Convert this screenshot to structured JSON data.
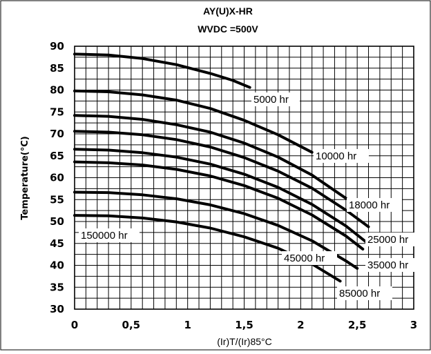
{
  "chart_data": {
    "type": "line",
    "title": "AY(U)X-HR",
    "subtitle": "WVDC =500V",
    "xlabel": "(Ir)T/(Ir)85°C",
    "ylabel": "Temperature(°C)",
    "xlim": [
      0,
      3
    ],
    "ylim": [
      30,
      90
    ],
    "x_minor_step": 0.1,
    "y_minor_step": 2.5,
    "x_ticks": [
      0,
      0.5,
      1,
      1.5,
      2,
      2.5,
      3
    ],
    "x_tick_labels": [
      "0",
      "0,5",
      "1",
      "1,5",
      "2",
      "2,5",
      "3"
    ],
    "y_ticks": [
      30,
      35,
      40,
      45,
      50,
      55,
      60,
      65,
      70,
      75,
      80,
      85,
      90
    ],
    "y_tick_labels": [
      "30",
      "35",
      "40",
      "45",
      "50",
      "55",
      "60",
      "65",
      "70",
      "75",
      "80",
      "85",
      "90"
    ],
    "grid": true,
    "line_color": "#000000",
    "series": [
      {
        "name": "5000 hr",
        "x": [
          0,
          0.3,
          0.6,
          0.9,
          1.2,
          1.4,
          1.55
        ],
        "y": [
          88.2,
          88,
          87.2,
          85.8,
          83.8,
          82.2,
          80.6
        ]
      },
      {
        "name": "10000 hr",
        "x": [
          0,
          0.3,
          0.6,
          0.9,
          1.2,
          1.5,
          1.8,
          2.1
        ],
        "y": [
          79.8,
          79.6,
          78.9,
          77.7,
          75.8,
          73.1,
          69.8,
          65.8
        ]
      },
      {
        "name": "18000 hr",
        "x": [
          0,
          0.3,
          0.6,
          0.9,
          1.2,
          1.5,
          1.8,
          2.1,
          2.4
        ],
        "y": [
          74.2,
          74,
          73.3,
          72.1,
          70.4,
          67.9,
          64.7,
          60.6,
          55.3
        ]
      },
      {
        "name": "25000 hr",
        "x": [
          0,
          0.3,
          0.6,
          0.9,
          1.2,
          1.5,
          1.8,
          2.1,
          2.4,
          2.6
        ],
        "y": [
          70.6,
          70.4,
          69.8,
          68.7,
          67,
          64.6,
          61.5,
          57.6,
          52.6,
          48.8
        ]
      },
      {
        "name": "35000 hr",
        "x": [
          0,
          0.3,
          0.6,
          0.9,
          1.2,
          1.5,
          1.8,
          2.1,
          2.4,
          2.6
        ],
        "y": [
          66.5,
          66.3,
          65.7,
          64.7,
          63.1,
          60.8,
          57.8,
          53.9,
          49,
          44.9
        ]
      },
      {
        "name": "45000 hr",
        "x": [
          0,
          0.3,
          0.6,
          0.9,
          1.2,
          1.5,
          1.8,
          2.1,
          2.4,
          2.55
        ],
        "y": [
          63.6,
          63.4,
          62.9,
          61.9,
          60.4,
          58.2,
          55.3,
          51.5,
          46.7,
          43.7
        ]
      },
      {
        "name": "85000 hr",
        "x": [
          0,
          0.3,
          0.6,
          0.9,
          1.2,
          1.5,
          1.8,
          2.1,
          2.4,
          2.5
        ],
        "y": [
          56.7,
          56.6,
          56.1,
          55.2,
          53.8,
          51.8,
          49.1,
          45.6,
          41,
          39.3
        ]
      },
      {
        "name": "150000 hr",
        "x": [
          0,
          0.3,
          0.6,
          0.9,
          1.2,
          1.5,
          1.8,
          2.1,
          2.35
        ],
        "y": [
          51.4,
          51.3,
          50.8,
          49.9,
          48.5,
          46.5,
          43.9,
          40.3,
          36.4
        ]
      }
    ]
  }
}
